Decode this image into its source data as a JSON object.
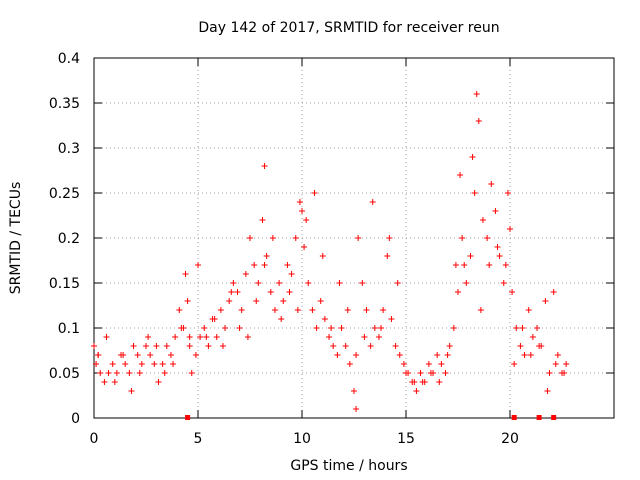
{
  "chart_data": {
    "type": "scatter",
    "title": "Day 142 of 2017, SRMTID for receiver reun",
    "xlabel": "GPS time / hours",
    "ylabel": "SRMTID / TECUs",
    "xlim": [
      0,
      25
    ],
    "ylim": [
      0,
      0.4
    ],
    "xticks": [
      0,
      5,
      10,
      15,
      20
    ],
    "xtick_labels": [
      "0",
      "5",
      "10",
      "15",
      "20"
    ],
    "yticks": [
      0,
      0.05,
      0.1,
      0.15,
      0.2,
      0.25,
      0.3,
      0.35,
      0.4
    ],
    "ytick_labels": [
      "0",
      "0.05",
      "0.1",
      "0.15",
      "0.2",
      "0.25",
      "0.3",
      "0.35",
      "0.4"
    ],
    "grid": true,
    "marker": "plus",
    "series": [
      {
        "name": "SRMTID",
        "color": "#ff0000",
        "x": [
          0.0,
          0.1,
          0.2,
          0.3,
          0.5,
          0.7,
          0.9,
          1.1,
          1.3,
          1.5,
          1.7,
          1.9,
          2.1,
          2.3,
          2.5,
          2.7,
          2.9,
          3.1,
          3.3,
          3.5,
          3.7,
          3.9,
          4.1,
          4.3,
          4.4,
          4.5,
          4.6,
          4.7,
          4.9,
          5.1,
          5.3,
          5.5,
          5.7,
          5.9,
          6.1,
          6.3,
          6.5,
          6.7,
          6.9,
          7.1,
          7.3,
          7.5,
          7.7,
          7.9,
          8.1,
          8.2,
          8.3,
          8.5,
          8.7,
          8.9,
          9.1,
          9.3,
          9.5,
          9.7,
          9.9,
          10.0,
          10.1,
          10.3,
          10.5,
          10.7,
          10.9,
          11.1,
          11.3,
          11.5,
          11.7,
          11.9,
          12.1,
          12.3,
          12.5,
          12.6,
          12.7,
          12.9,
          13.1,
          13.3,
          13.5,
          13.7,
          13.9,
          14.1,
          14.3,
          14.5,
          14.7,
          14.9,
          15.1,
          15.3,
          15.5,
          15.7,
          15.9,
          16.1,
          16.3,
          16.5,
          16.7,
          16.9,
          17.1,
          17.3,
          17.5,
          17.6,
          17.7,
          17.9,
          18.1,
          18.3,
          18.4,
          18.5,
          18.7,
          18.9,
          19.1,
          19.3,
          19.5,
          19.7,
          19.9,
          20.0,
          20.1,
          20.3,
          20.5,
          20.7,
          20.9,
          21.1,
          21.3,
          21.5,
          21.7,
          21.9,
          22.1,
          22.3,
          22.5,
          22.7,
          0.2,
          0.6,
          1.0,
          1.4,
          1.8,
          2.2,
          2.6,
          3.0,
          3.4,
          3.8,
          4.2,
          4.6,
          5.0,
          5.4,
          5.8,
          6.2,
          6.6,
          7.0,
          7.4,
          7.8,
          8.2,
          8.6,
          9.0,
          9.4,
          9.8,
          10.2,
          10.6,
          11.0,
          11.4,
          11.8,
          12.2,
          12.6,
          13.0,
          13.4,
          13.8,
          14.2,
          14.6,
          15.0,
          15.4,
          15.8,
          16.2,
          16.6,
          17.0,
          17.4,
          17.8,
          18.2,
          18.6,
          19.0,
          19.4,
          19.8,
          20.2,
          20.6,
          21.0,
          21.4,
          21.8,
          22.2,
          22.6
        ],
        "y": [
          0.08,
          0.06,
          0.07,
          0.05,
          0.04,
          0.05,
          0.06,
          0.05,
          0.07,
          0.06,
          0.05,
          0.08,
          0.07,
          0.06,
          0.08,
          0.07,
          0.06,
          0.04,
          0.06,
          0.08,
          0.07,
          0.09,
          0.12,
          0.1,
          0.16,
          0.13,
          0.08,
          0.05,
          0.07,
          0.09,
          0.1,
          0.08,
          0.11,
          0.09,
          0.12,
          0.1,
          0.13,
          0.15,
          0.14,
          0.12,
          0.16,
          0.2,
          0.17,
          0.15,
          0.22,
          0.28,
          0.18,
          0.14,
          0.12,
          0.15,
          0.13,
          0.17,
          0.16,
          0.2,
          0.24,
          0.23,
          0.19,
          0.15,
          0.12,
          0.1,
          0.13,
          0.11,
          0.09,
          0.08,
          0.07,
          0.1,
          0.08,
          0.06,
          0.03,
          0.01,
          0.2,
          0.15,
          0.12,
          0.08,
          0.1,
          0.09,
          0.12,
          0.18,
          0.11,
          0.08,
          0.07,
          0.06,
          0.05,
          0.04,
          0.03,
          0.05,
          0.04,
          0.06,
          0.05,
          0.07,
          0.06,
          0.05,
          0.08,
          0.1,
          0.14,
          0.27,
          0.2,
          0.15,
          0.18,
          0.25,
          0.36,
          0.33,
          0.22,
          0.2,
          0.26,
          0.23,
          0.18,
          0.15,
          0.25,
          0.21,
          0.14,
          0.1,
          0.08,
          0.07,
          0.12,
          0.09,
          0.1,
          0.08,
          0.13,
          0.05,
          0.14,
          0.07,
          0.05,
          0.06,
          0.07,
          0.09,
          0.04,
          0.07,
          0.03,
          0.05,
          0.09,
          0.08,
          0.05,
          0.06,
          0.1,
          0.09,
          0.17,
          0.09,
          0.11,
          0.08,
          0.14,
          0.1,
          0.09,
          0.13,
          0.17,
          0.2,
          0.11,
          0.14,
          0.12,
          0.22,
          0.25,
          0.18,
          0.1,
          0.15,
          0.12,
          0.07,
          0.09,
          0.24,
          0.1,
          0.2,
          0.15,
          0.05,
          0.04,
          0.04,
          0.05,
          0.04,
          0.07,
          0.17,
          0.17,
          0.29,
          0.12,
          0.17,
          0.19,
          0.17,
          0.06,
          0.1,
          0.07,
          0.08,
          0.03,
          0.06,
          0.05
        ],
        "zero_markers_x": [
          4.5,
          20.2,
          21.4,
          22.1
        ]
      }
    ]
  }
}
